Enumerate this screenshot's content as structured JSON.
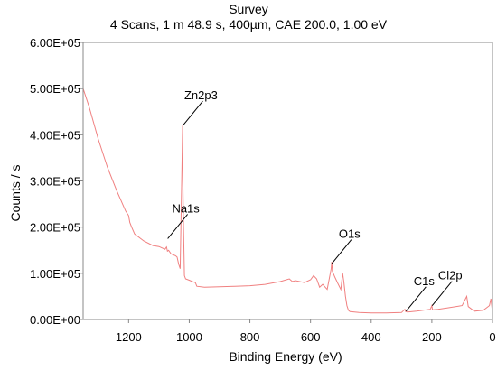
{
  "chart_data": {
    "type": "line",
    "title": "Survey",
    "subtitle": "4 Scans,  1 m 48.9 s,  400µm,  CAE 200.0,  1.00 eV",
    "xlabel": "Binding Energy (eV)",
    "ylabel": "Counts / s",
    "xlim": [
      1350,
      0
    ],
    "ylim": [
      0,
      600000
    ],
    "x_ticks": [
      {
        "value": 1200,
        "label": "1200"
      },
      {
        "value": 1000,
        "label": "1000"
      },
      {
        "value": 800,
        "label": "800"
      },
      {
        "value": 600,
        "label": "600"
      },
      {
        "value": 400,
        "label": "400"
      },
      {
        "value": 200,
        "label": "200"
      },
      {
        "value": 0,
        "label": "0"
      }
    ],
    "y_ticks": [
      {
        "value": 0,
        "label": "0.00E+00"
      },
      {
        "value": 100000,
        "label": "1.00E+05"
      },
      {
        "value": 200000,
        "label": "2.00E+05"
      },
      {
        "value": 300000,
        "label": "3.00E+05"
      },
      {
        "value": 400000,
        "label": "4.00E+05"
      },
      {
        "value": 500000,
        "label": "5.00E+05"
      },
      {
        "value": 600000,
        "label": "6.00E+05"
      }
    ],
    "grid": false,
    "line_color": "#f08080",
    "series": [
      {
        "x": [
          1350,
          1330,
          1300,
          1270,
          1240,
          1210,
          1200,
          1196,
          1190,
          1180,
          1150,
          1120,
          1100,
          1080,
          1075,
          1072,
          1068,
          1060,
          1045,
          1040,
          1035,
          1030,
          1025,
          1022,
          1021,
          1019,
          1016,
          1012,
          1000,
          990,
          980,
          975,
          950,
          900,
          850,
          800,
          750,
          700,
          670,
          660,
          650,
          620,
          600,
          590,
          580,
          570,
          560,
          545,
          532,
          530,
          528,
          520,
          510,
          500,
          496,
          494,
          490,
          485,
          480,
          475,
          470,
          440,
          400,
          350,
          300,
          289,
          286,
          280,
          250,
          205,
          200,
          198,
          180,
          150,
          100,
          85,
          80,
          60,
          30,
          10,
          5,
          0
        ],
        "y": [
          500000,
          460000,
          390000,
          330000,
          280000,
          235000,
          225000,
          210000,
          200000,
          185000,
          170000,
          160000,
          158000,
          152000,
          157000,
          148000,
          150000,
          142000,
          138000,
          135000,
          120000,
          110000,
          300000,
          420000,
          300000,
          200000,
          95000,
          88000,
          85000,
          82000,
          80000,
          72000,
          70000,
          71000,
          72000,
          73000,
          76000,
          82000,
          88000,
          82000,
          84000,
          80000,
          86000,
          95000,
          88000,
          70000,
          76000,
          65000,
          110000,
          125000,
          105000,
          92000,
          78000,
          65000,
          90000,
          100000,
          80000,
          50000,
          30000,
          20000,
          17000,
          15000,
          14000,
          14000,
          15000,
          22000,
          17000,
          16000,
          18000,
          22000,
          30000,
          21000,
          22000,
          25000,
          30000,
          50000,
          28000,
          18000,
          20000,
          30000,
          45000,
          15000
        ]
      }
    ],
    "annotations": [
      {
        "label": "Zn2p3",
        "x": 1021,
        "y": 420000
      },
      {
        "label": "Na1s",
        "x": 1071,
        "y": 175000
      },
      {
        "label": "O1s",
        "x": 531,
        "y": 120000
      },
      {
        "label": "C1s",
        "x": 285,
        "y": 18000
      },
      {
        "label": "Cl2p",
        "x": 199,
        "y": 30000
      }
    ]
  }
}
